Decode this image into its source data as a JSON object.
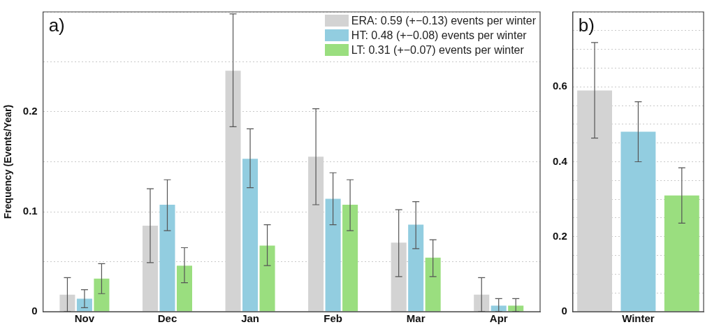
{
  "chart_data": [
    {
      "type": "bar",
      "annotations": [
        "a)"
      ],
      "ylabel": "Frequency (Events/Year)",
      "categories": [
        "Nov",
        "Dec",
        "Jan",
        "Feb",
        "Mar",
        "Apr"
      ],
      "series": [
        {
          "name": "ERA: 0.59 (+−0.13) events per winter",
          "color": "#d3d3d3",
          "values": [
            0.017,
            0.086,
            0.241,
            0.155,
            0.069,
            0.017
          ],
          "errors": [
            [
              0,
              0.034
            ],
            [
              0.049,
              0.123
            ],
            [
              0.185,
              0.298
            ],
            [
              0.107,
              0.203
            ],
            [
              0.035,
              0.102
            ],
            [
              0,
              0.034
            ]
          ]
        },
        {
          "name": "HT: 0.48 (+−0.08) events per winter",
          "color": "#92cde0",
          "values": [
            0.013,
            0.107,
            0.153,
            0.113,
            0.087,
            0.006
          ],
          "errors": [
            [
              0.004,
              0.022
            ],
            [
              0.081,
              0.132
            ],
            [
              0.124,
              0.183
            ],
            [
              0.087,
              0.139
            ],
            [
              0.063,
              0.11
            ],
            [
              0,
              0.013
            ]
          ]
        },
        {
          "name": "LT: 0.31 (+−0.07) events per winter",
          "color": "#9ade7f",
          "values": [
            0.033,
            0.046,
            0.066,
            0.107,
            0.054,
            0.006
          ],
          "errors": [
            [
              0.018,
              0.048
            ],
            [
              0.029,
              0.064
            ],
            [
              0.046,
              0.087
            ],
            [
              0.081,
              0.132
            ],
            [
              0.035,
              0.072
            ],
            [
              0,
              0.013
            ]
          ]
        }
      ],
      "ylim": [
        0,
        0.3
      ],
      "yticks": [
        0,
        {
          "value": 0.05,
          "label": null
        },
        0.1,
        {
          "value": 0.15,
          "label": null
        },
        0.2,
        {
          "value": 0.25,
          "label": null
        },
        {
          "value": 0.3,
          "label": null
        }
      ],
      "grid": "y",
      "legend": "top right"
    },
    {
      "type": "bar",
      "annotations": [
        "b)"
      ],
      "categories": [
        null,
        "Winter",
        null
      ],
      "series": [
        {
          "colors": [
            "#d3d3d3",
            "#92cde0",
            "#9ade7f"
          ],
          "values": [
            0.59,
            0.48,
            0.31
          ],
          "errors": [
            [
              0.463,
              0.718
            ],
            [
              0.4,
              0.56
            ],
            [
              0.236,
              0.384
            ]
          ]
        }
      ],
      "ylim": [
        0,
        0.8
      ],
      "yticks": [
        0,
        {
          "value": 0.05,
          "label": null
        },
        {
          "value": 0.1,
          "label": null
        },
        {
          "value": 0.15,
          "label": null
        },
        0.2,
        {
          "value": 0.25,
          "label": null
        },
        {
          "value": 0.3,
          "label": null
        },
        {
          "value": 0.35,
          "label": null
        },
        0.4,
        {
          "value": 0.45,
          "label": null
        },
        {
          "value": 0.5,
          "label": null
        },
        {
          "value": 0.55,
          "label": null
        },
        0.6,
        {
          "value": 0.65,
          "label": null
        },
        {
          "value": 0.7,
          "label": null
        },
        {
          "value": 0.75,
          "label": null
        },
        {
          "value": 0.8,
          "label": null
        }
      ],
      "grid": "y"
    }
  ]
}
